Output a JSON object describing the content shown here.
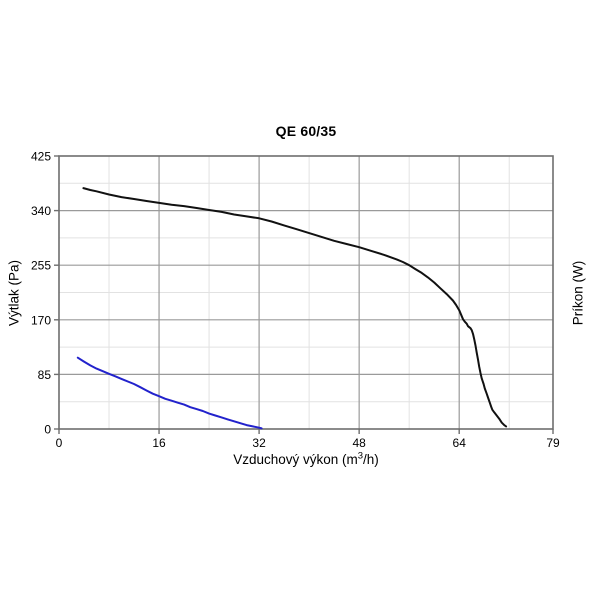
{
  "chart_data": {
    "type": "line",
    "title": "QE 60/35",
    "xlabel": "Vzduchový výkon (m³/h)",
    "xlabel_parts": {
      "prefix": "Vzduchový výkon (m",
      "sup": "3",
      "suffix": "/h)"
    },
    "ylabel_left": "Výtlak (Pa)",
    "ylabel_right": "Príkon (W)",
    "xlim": [
      0,
      79
    ],
    "ylim": [
      0,
      425
    ],
    "x_ticks": [
      0,
      16,
      32,
      48,
      64,
      79
    ],
    "y_ticks": [
      0,
      85,
      170,
      255,
      340,
      425
    ],
    "x_minor_ticks": [
      8,
      24,
      40,
      56,
      72
    ],
    "y_minor_ticks": [
      42.5,
      127.5,
      212.5,
      297.5,
      382.5
    ],
    "grid": true,
    "legend_position": "none",
    "colors": {
      "pressure_curve": "#111111",
      "power_curve": "#2222cc",
      "major_grid": "#9a9a9a",
      "minor_grid": "#e2e2e2",
      "axis_border": "#6e6e6e",
      "text": "#000000",
      "background": "#ffffff"
    },
    "series": [
      {
        "name": "vytlak-pressure-curve",
        "axis": "left",
        "color": "#111111",
        "width": 2,
        "points": [
          [
            3.9,
            375
          ],
          [
            5,
            372
          ],
          [
            6,
            370
          ],
          [
            8,
            365
          ],
          [
            10,
            361
          ],
          [
            12,
            358
          ],
          [
            14,
            355
          ],
          [
            16,
            352
          ],
          [
            18,
            349
          ],
          [
            20,
            347
          ],
          [
            22,
            344
          ],
          [
            24,
            341
          ],
          [
            26,
            338
          ],
          [
            28,
            334
          ],
          [
            30,
            331
          ],
          [
            32,
            328
          ],
          [
            34,
            323
          ],
          [
            36,
            317
          ],
          [
            38,
            311
          ],
          [
            40,
            305
          ],
          [
            42,
            299
          ],
          [
            44,
            293
          ],
          [
            46,
            288
          ],
          [
            48,
            283
          ],
          [
            50,
            277
          ],
          [
            52,
            271
          ],
          [
            54,
            264
          ],
          [
            55,
            260
          ],
          [
            56,
            255
          ],
          [
            57,
            249
          ],
          [
            58,
            243
          ],
          [
            59,
            236
          ],
          [
            60,
            228
          ],
          [
            61,
            219
          ],
          [
            62,
            210
          ],
          [
            63,
            200
          ],
          [
            63.5,
            193
          ],
          [
            64,
            185
          ],
          [
            64.3,
            178
          ],
          [
            64.6,
            171
          ],
          [
            64.9,
            167
          ],
          [
            65.2,
            164
          ],
          [
            65.4,
            160
          ],
          [
            65.8,
            157
          ],
          [
            66,
            154
          ],
          [
            66.2,
            148
          ],
          [
            66.4,
            140
          ],
          [
            66.6,
            130
          ],
          [
            66.8,
            119
          ],
          [
            67,
            108
          ],
          [
            67.2,
            97
          ],
          [
            67.4,
            87
          ],
          [
            67.6,
            79
          ],
          [
            67.9,
            70
          ],
          [
            68.1,
            63
          ],
          [
            68.4,
            55
          ],
          [
            68.6,
            49
          ],
          [
            68.9,
            41
          ],
          [
            69.1,
            35
          ],
          [
            69.3,
            30
          ],
          [
            69.6,
            26
          ],
          [
            70,
            21
          ],
          [
            70.4,
            16
          ],
          [
            70.8,
            10
          ],
          [
            71.2,
            6
          ],
          [
            71.5,
            4
          ]
        ]
      },
      {
        "name": "prikon-power-curve",
        "axis": "right",
        "color": "#2222cc",
        "width": 2,
        "points": [
          [
            3,
            111
          ],
          [
            4,
            105
          ],
          [
            5,
            99
          ],
          [
            6,
            94
          ],
          [
            7,
            90
          ],
          [
            8,
            86
          ],
          [
            9,
            82
          ],
          [
            10,
            78
          ],
          [
            11,
            74
          ],
          [
            12,
            70
          ],
          [
            13,
            65
          ],
          [
            14,
            60
          ],
          [
            15,
            55
          ],
          [
            16,
            51
          ],
          [
            17,
            47
          ],
          [
            18,
            44
          ],
          [
            19,
            41
          ],
          [
            20,
            38
          ],
          [
            21,
            34
          ],
          [
            22,
            31
          ],
          [
            23,
            28
          ],
          [
            24,
            24
          ],
          [
            25,
            21
          ],
          [
            26,
            18
          ],
          [
            27,
            15
          ],
          [
            28,
            12
          ],
          [
            29,
            9
          ],
          [
            30,
            6
          ],
          [
            31,
            4
          ],
          [
            32,
            2
          ],
          [
            32.4,
            1
          ]
        ]
      }
    ]
  }
}
